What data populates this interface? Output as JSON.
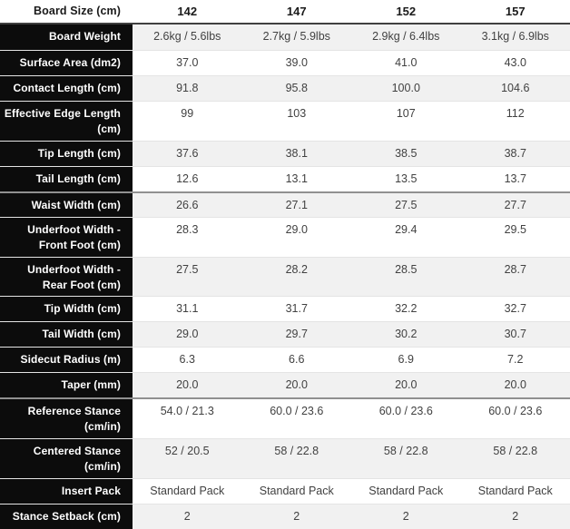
{
  "table": {
    "header": {
      "label": "Board Size (cm)",
      "sizes": [
        "142",
        "147",
        "152",
        "157"
      ]
    },
    "sections": [
      {
        "rows": [
          {
            "label": "Board Weight",
            "values": [
              "2.6kg / 5.6lbs",
              "2.7kg / 5.9lbs",
              "2.9kg / 6.4lbs",
              "3.1kg / 6.9lbs"
            ]
          },
          {
            "label": "Surface Area (dm2)",
            "values": [
              "37.0",
              "39.0",
              "41.0",
              "43.0"
            ]
          },
          {
            "label": "Contact Length (cm)",
            "values": [
              "91.8",
              "95.8",
              "100.0",
              "104.6"
            ]
          },
          {
            "label": "Effective Edge Length (cm)",
            "values": [
              "99",
              "103",
              "107",
              "112"
            ]
          },
          {
            "label": "Tip Length (cm)",
            "values": [
              "37.6",
              "38.1",
              "38.5",
              "38.7"
            ]
          },
          {
            "label": "Tail Length (cm)",
            "values": [
              "12.6",
              "13.1",
              "13.5",
              "13.7"
            ]
          }
        ]
      },
      {
        "rows": [
          {
            "label": "Waist Width (cm)",
            "values": [
              "26.6",
              "27.1",
              "27.5",
              "27.7"
            ]
          },
          {
            "label": "Underfoot Width - Front Foot (cm)",
            "values": [
              "28.3",
              "29.0",
              "29.4",
              "29.5"
            ]
          },
          {
            "label": "Underfoot Width - Rear Foot (cm)",
            "values": [
              "27.5",
              "28.2",
              "28.5",
              "28.7"
            ]
          },
          {
            "label": "Tip Width (cm)",
            "values": [
              "31.1",
              "31.7",
              "32.2",
              "32.7"
            ]
          },
          {
            "label": "Tail Width (cm)",
            "values": [
              "29.0",
              "29.7",
              "30.2",
              "30.7"
            ]
          },
          {
            "label": "Sidecut Radius (m)",
            "values": [
              "6.3",
              "6.6",
              "6.9",
              "7.2"
            ]
          },
          {
            "label": "Taper (mm)",
            "values": [
              "20.0",
              "20.0",
              "20.0",
              "20.0"
            ]
          }
        ]
      },
      {
        "rows": [
          {
            "label": "Reference Stance (cm/in)",
            "values": [
              "54.0 / 21.3",
              "60.0 / 23.6",
              "60.0 / 23.6",
              "60.0 / 23.6"
            ]
          },
          {
            "label": "Centered Stance (cm/in)",
            "values": [
              "52 / 20.5",
              "58 / 22.8",
              "58 / 22.8",
              "58 / 22.8"
            ]
          },
          {
            "label": "Insert Pack",
            "values": [
              "Standard Pack",
              "Standard Pack",
              "Standard Pack",
              "Standard Pack"
            ]
          },
          {
            "label": "Stance Setback (cm)",
            "values": [
              "2",
              "2",
              "2",
              "2"
            ]
          }
        ]
      }
    ],
    "colors": {
      "label_bg": "#0c0c0c",
      "label_text": "#ffffff",
      "header_text": "#1a1a1a",
      "data_text": "#414141",
      "stripe": "#f1f1f1",
      "thin_border": "#e4e4e4",
      "group_border": "#909090",
      "header_border": "#3f3f3f"
    }
  }
}
